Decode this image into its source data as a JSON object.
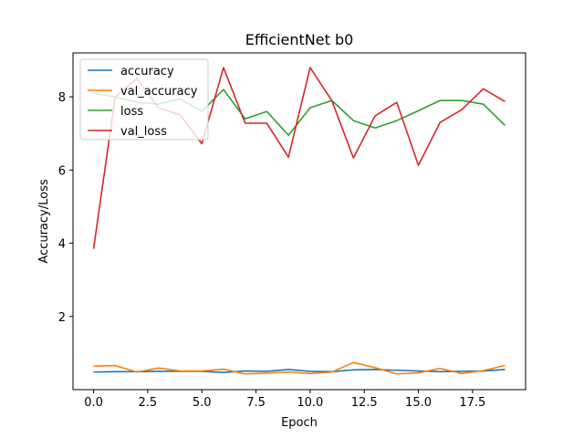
{
  "chart_data": {
    "type": "line",
    "title": "EfficientNet b0",
    "xlabel": "Epoch",
    "ylabel": "Accuracy/Loss",
    "xlim": [
      -0.95,
      19.95
    ],
    "ylim": [
      0.0,
      9.2
    ],
    "xticks": [
      0.0,
      2.5,
      5.0,
      7.5,
      10.0,
      12.5,
      15.0,
      17.5
    ],
    "xtick_labels": [
      "0.0",
      "2.5",
      "5.0",
      "7.5",
      "10.0",
      "12.5",
      "15.0",
      "17.5"
    ],
    "yticks": [
      2,
      4,
      6,
      8
    ],
    "ytick_labels": [
      "2",
      "4",
      "6",
      "8"
    ],
    "grid": false,
    "legend_position": "top-left",
    "x": [
      0,
      1,
      2,
      3,
      4,
      5,
      6,
      7,
      8,
      9,
      10,
      11,
      12,
      13,
      14,
      15,
      16,
      17,
      18,
      19
    ],
    "series": [
      {
        "name": "accuracy",
        "color": "#1f77b4",
        "values": [
          0.48,
          0.49,
          0.49,
          0.5,
          0.5,
          0.5,
          0.47,
          0.51,
          0.5,
          0.55,
          0.5,
          0.49,
          0.54,
          0.55,
          0.53,
          0.51,
          0.49,
          0.5,
          0.51,
          0.55
        ]
      },
      {
        "name": "val_accuracy",
        "color": "#ff7f0e",
        "values": [
          0.64,
          0.66,
          0.48,
          0.59,
          0.51,
          0.51,
          0.56,
          0.43,
          0.45,
          0.48,
          0.44,
          0.48,
          0.74,
          0.6,
          0.43,
          0.46,
          0.58,
          0.44,
          0.52,
          0.66
        ]
      },
      {
        "name": "loss",
        "color": "#2ca02c",
        "values": [
          8.1,
          8.0,
          7.85,
          7.8,
          7.95,
          7.6,
          8.2,
          7.4,
          7.6,
          6.95,
          7.7,
          7.9,
          7.35,
          7.15,
          7.35,
          7.62,
          7.9,
          7.9,
          7.8,
          7.22
        ]
      },
      {
        "name": "val_loss",
        "color": "#d62728",
        "values": [
          3.85,
          8.0,
          8.5,
          7.7,
          7.5,
          6.72,
          8.8,
          7.28,
          7.28,
          6.35,
          8.8,
          7.9,
          6.33,
          7.48,
          7.85,
          6.13,
          7.3,
          7.65,
          8.22,
          7.87
        ]
      }
    ]
  }
}
